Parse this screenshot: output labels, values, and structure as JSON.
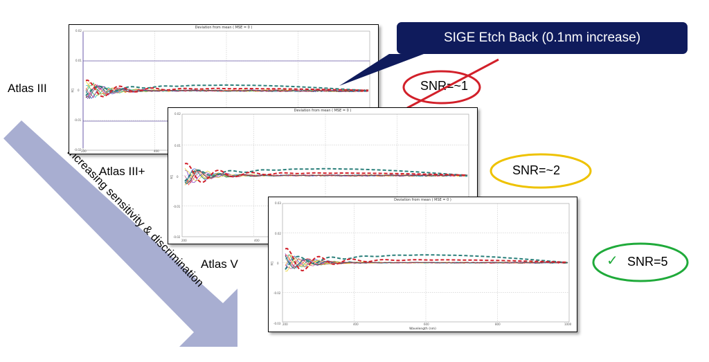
{
  "panels": [
    {
      "id": "atlas-iii",
      "title": "Deviation from mean ( MSE = 0 )",
      "xlabel": "",
      "ylabel": "M1",
      "y_ticks": [
        "0.02",
        "0.01",
        "0",
        "-0.01",
        "-0.02"
      ],
      "x_ticks": [
        "200",
        "400"
      ],
      "tool_label": "Atlas III"
    },
    {
      "id": "atlas-iii-plus",
      "title": "Deviation from mean ( MSE = 0 )",
      "xlabel": "",
      "ylabel": "M1",
      "y_ticks": [
        "0.02",
        "0.01",
        "0",
        "-0.01",
        "-0.02"
      ],
      "x_ticks": [
        "200",
        "400"
      ],
      "tool_label": "Atlas III+"
    },
    {
      "id": "atlas-v",
      "title": "Deviation from mean ( MSE = 0 )",
      "xlabel": "Wavelength (nm)",
      "ylabel": "M1",
      "y_ticks": [
        "0.03",
        "0.02",
        "0",
        "-0.02",
        "-0.03"
      ],
      "x_ticks": [
        "200",
        "400",
        "600",
        "800",
        "1000"
      ],
      "tool_label": "Atlas V"
    }
  ],
  "callout": {
    "text": "SIGE Etch Back (0.1nm increase)",
    "color": "#0f1b5c"
  },
  "snr": [
    {
      "text": "SNR=~1",
      "ring_color": "#d2202a",
      "crossed": true
    },
    {
      "text": "SNR=~2",
      "ring_color": "#eec200"
    },
    {
      "text": "SNR=5",
      "ring_color": "#1faa3a",
      "check_icon": "check-icon",
      "check_glyph": "✓"
    }
  ],
  "arrow": {
    "text": "Increasing sensitivity & discrimination",
    "color": "#a8aed1"
  },
  "series_colors": [
    "#1f4fd6",
    "#2fa84f",
    "#f0a020",
    "#7b2fbf",
    "#e8d020",
    "#20c0d0",
    "#ff3030",
    "#c04080",
    "#404040"
  ],
  "signal_colors": {
    "red_dashed": "#d2202a",
    "teal_dashed": "#2a7f7a"
  }
}
